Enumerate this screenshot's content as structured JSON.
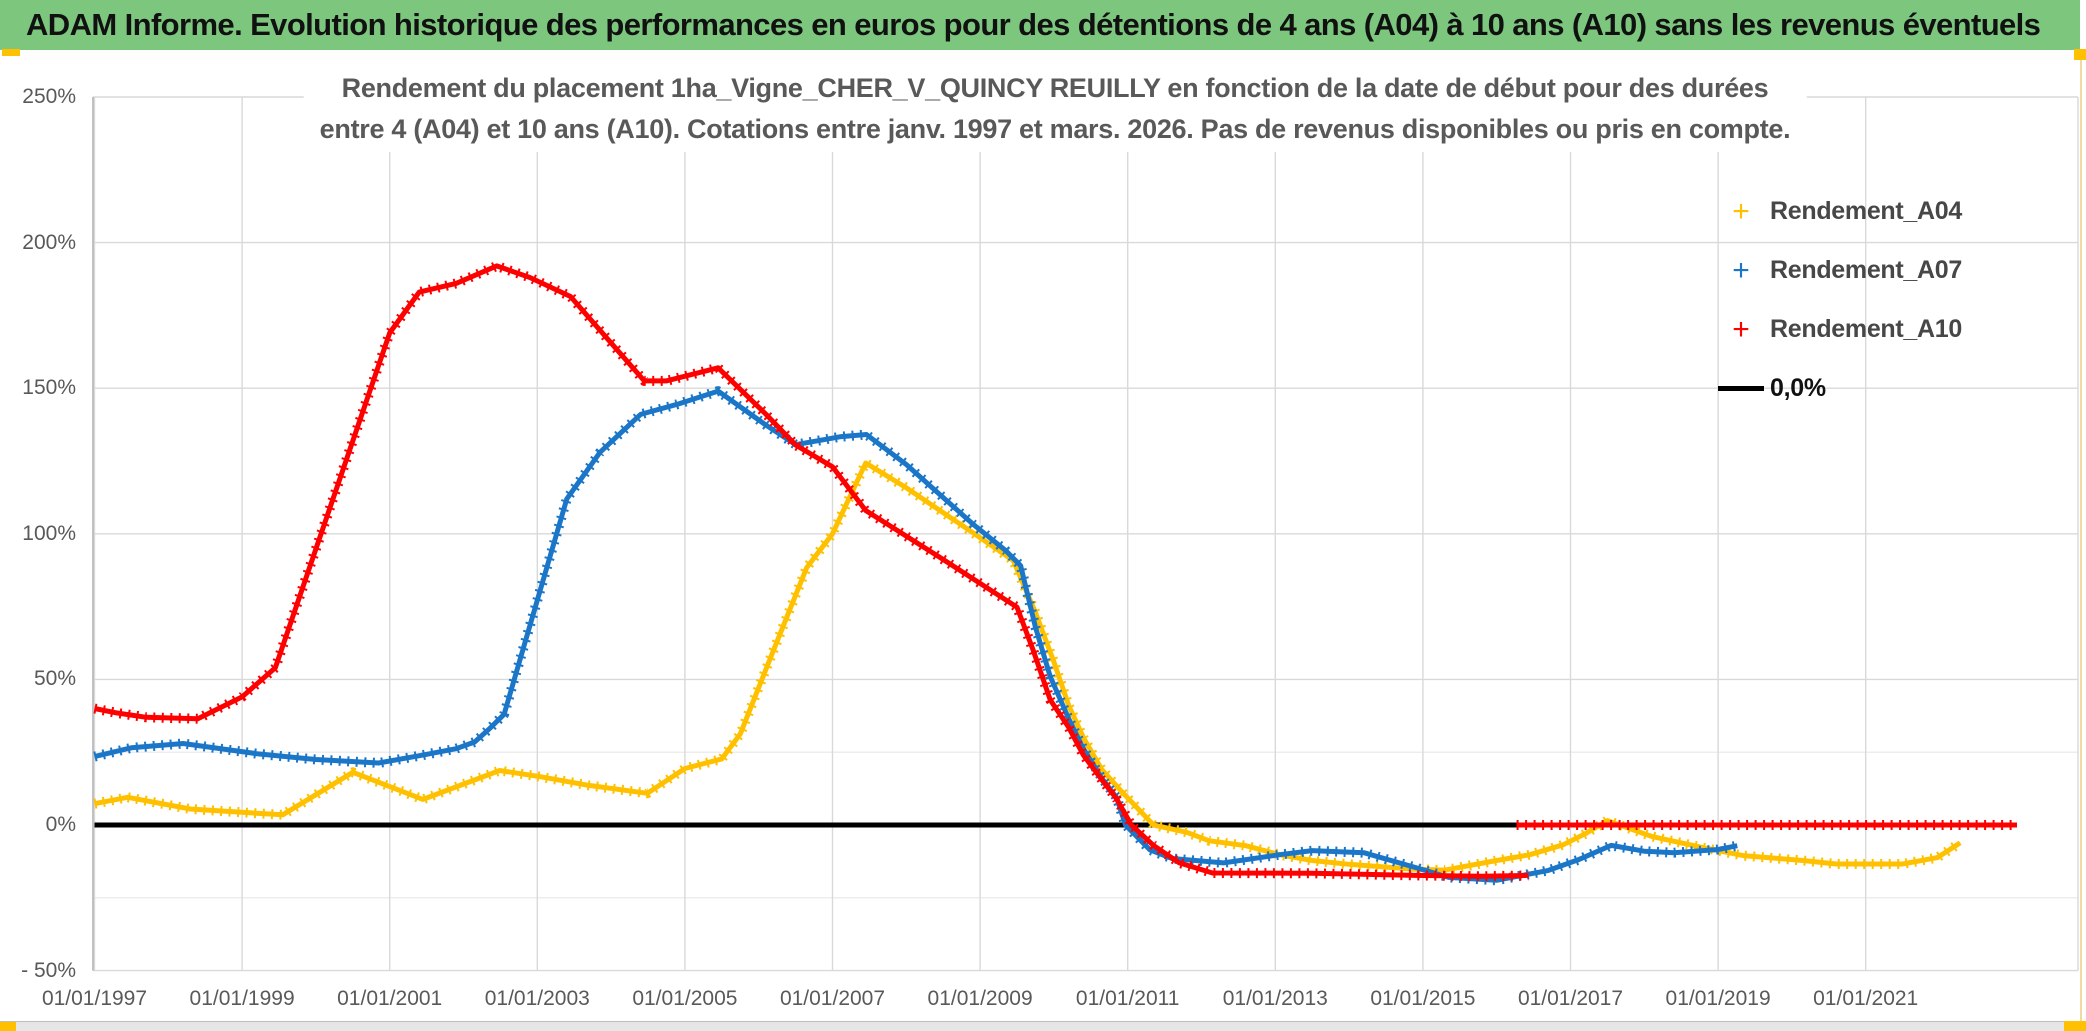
{
  "header": {
    "title": "ADAM Informe. Evolution historique des performances en euros pour des détentions de 4 ans (A04) à 10 ans (A10) sans les revenus éventuels"
  },
  "chart_data": {
    "type": "line",
    "title_line1": "Rendement du placement 1ha_Vigne_CHER_V_QUINCY REUILLY en fonction de la date de début pour des durées",
    "title_line2": "entre 4 (A04) et 10 ans (A10). Cotations entre janv. 1997 et mars. 2026. Pas de revenus disponibles ou pris en compte.",
    "grid_color": "#d9d9d9",
    "minor_grid_color": "#e7e7e7",
    "axis_line_color": "#b3b3b3",
    "x_axis": {
      "ticks": [
        {
          "year": 1997,
          "label": "01/01/1997"
        },
        {
          "year": 1999,
          "label": "01/01/1999"
        },
        {
          "year": 2001,
          "label": "01/01/2001"
        },
        {
          "year": 2003,
          "label": "01/01/2003"
        },
        {
          "year": 2005,
          "label": "01/01/2005"
        },
        {
          "year": 2007,
          "label": "01/01/2007"
        },
        {
          "year": 2009,
          "label": "01/01/2009"
        },
        {
          "year": 2011,
          "label": "01/01/2011"
        },
        {
          "year": 2013,
          "label": "01/01/2013"
        },
        {
          "year": 2015,
          "label": "01/01/2015"
        },
        {
          "year": 2017,
          "label": "01/01/2017"
        },
        {
          "year": 2019,
          "label": "01/01/2019"
        },
        {
          "year": 2021,
          "label": "01/01/2021"
        }
      ],
      "range_years": [
        1997.0,
        2023.9
      ]
    },
    "y_axis": {
      "unit": "percent",
      "range": [
        -50,
        250
      ],
      "major_ticks": [
        {
          "value": 250,
          "label": "250%"
        },
        {
          "value": 200,
          "label": "200%"
        },
        {
          "value": 150,
          "label": "150%"
        },
        {
          "value": 100,
          "label": "100%"
        },
        {
          "value": 50,
          "label": "50%"
        },
        {
          "value": 0,
          "label": "0%"
        },
        {
          "value": -50,
          "label": "- 50%"
        }
      ],
      "minor_gridlines": [
        25,
        -25
      ]
    },
    "zero_line": {
      "value": 0.0,
      "start_year": 1997.0,
      "end_year": 2023.05,
      "color": "#000000"
    },
    "series": [
      {
        "name": "Rendement_A04",
        "color": "#ffc000",
        "marker": "plus",
        "points": [
          [
            1997.0,
            7.3
          ],
          [
            1997.45,
            9.5
          ],
          [
            1998.3,
            5.5
          ],
          [
            1999.1,
            4.2
          ],
          [
            1999.55,
            3.5
          ],
          [
            2000.5,
            18.1
          ],
          [
            2001.45,
            8.8
          ],
          [
            2002.49,
            18.7
          ],
          [
            2003.04,
            16.6
          ],
          [
            2003.7,
            13.6
          ],
          [
            2004.49,
            10.9
          ],
          [
            2005.0,
            19.4
          ],
          [
            2005.5,
            22.7
          ],
          [
            2005.75,
            31.3
          ],
          [
            2006.2,
            60
          ],
          [
            2006.65,
            88.4
          ],
          [
            2007.0,
            100
          ],
          [
            2007.45,
            124.3
          ],
          [
            2008.0,
            115.8
          ],
          [
            2008.9,
            100.4
          ],
          [
            2009.45,
            90.8
          ],
          [
            2009.75,
            73
          ],
          [
            2010.0,
            56
          ],
          [
            2010.2,
            41
          ],
          [
            2010.4,
            30
          ],
          [
            2010.65,
            19
          ],
          [
            2010.9,
            12
          ],
          [
            2011.35,
            0
          ],
          [
            2011.8,
            -2.5
          ],
          [
            2012.1,
            -5.4
          ],
          [
            2012.6,
            -7.1
          ],
          [
            2013.06,
            -10.2
          ],
          [
            2013.5,
            -12.2
          ],
          [
            2014.0,
            -13.5
          ],
          [
            2014.9,
            -15.2
          ],
          [
            2015.3,
            -15.5
          ],
          [
            2016.0,
            -12.2
          ],
          [
            2016.45,
            -10.2
          ],
          [
            2016.9,
            -6.8
          ],
          [
            2017.2,
            -3
          ],
          [
            2017.5,
            1.5
          ],
          [
            2018.1,
            -3.9
          ],
          [
            2018.8,
            -7.8
          ],
          [
            2019.34,
            -10.5
          ],
          [
            2020.15,
            -12.2
          ],
          [
            2020.6,
            -13.4
          ],
          [
            2021.5,
            -13.4
          ],
          [
            2021.97,
            -11.2
          ],
          [
            2022.28,
            -6.1
          ]
        ]
      },
      {
        "name": "Rendement_A07",
        "color": "#1b76c8",
        "marker": "plus",
        "points": [
          [
            1997.0,
            23.5
          ],
          [
            1997.5,
            26.5
          ],
          [
            1998.2,
            28
          ],
          [
            1999.2,
            24.5
          ],
          [
            2000.0,
            22.5
          ],
          [
            2000.85,
            21.3
          ],
          [
            2001.45,
            24
          ],
          [
            2001.9,
            26.2
          ],
          [
            2002.15,
            28.5
          ],
          [
            2002.35,
            33
          ],
          [
            2002.55,
            38
          ],
          [
            2003.4,
            112
          ],
          [
            2003.85,
            128
          ],
          [
            2004.4,
            141
          ],
          [
            2004.9,
            144.5
          ],
          [
            2005.45,
            149
          ],
          [
            2006.1,
            137.3
          ],
          [
            2006.5,
            130.6
          ],
          [
            2007.1,
            133.3
          ],
          [
            2007.46,
            134.1
          ],
          [
            2008.0,
            123.8
          ],
          [
            2008.45,
            113.6
          ],
          [
            2008.9,
            103.4
          ],
          [
            2009.35,
            94.2
          ],
          [
            2009.55,
            89
          ],
          [
            2009.75,
            68
          ],
          [
            2009.95,
            51
          ],
          [
            2010.2,
            36.5
          ],
          [
            2010.4,
            26.2
          ],
          [
            2010.65,
            16
          ],
          [
            2010.85,
            9.4
          ],
          [
            2010.97,
            0
          ],
          [
            2011.3,
            -8.5
          ],
          [
            2011.6,
            -11.5
          ],
          [
            2012.3,
            -13
          ],
          [
            2013.06,
            -10.2
          ],
          [
            2013.5,
            -8.8
          ],
          [
            2014.2,
            -9.5
          ],
          [
            2014.9,
            -14.6
          ],
          [
            2015.35,
            -18
          ],
          [
            2016.0,
            -19
          ],
          [
            2016.7,
            -15.6
          ],
          [
            2017.1,
            -12
          ],
          [
            2017.55,
            -7
          ],
          [
            2018.0,
            -9
          ],
          [
            2018.4,
            -9.5
          ],
          [
            2019.0,
            -8.4
          ],
          [
            2019.26,
            -7.1
          ]
        ]
      },
      {
        "name": "Rendement_A10",
        "color": "#fe0000",
        "marker": "plus",
        "points": [
          [
            1997.0,
            40
          ],
          [
            1997.3,
            38.5
          ],
          [
            1997.7,
            37
          ],
          [
            1998.4,
            36.5
          ],
          [
            1999.0,
            44
          ],
          [
            1999.45,
            54
          ],
          [
            2001.0,
            169
          ],
          [
            2001.4,
            183
          ],
          [
            2001.9,
            186
          ],
          [
            2002.45,
            192
          ],
          [
            2002.9,
            188
          ],
          [
            2003.45,
            181.5
          ],
          [
            2004.45,
            152.5
          ],
          [
            2004.75,
            152.5
          ],
          [
            2005.45,
            157
          ],
          [
            2006.1,
            141
          ],
          [
            2006.5,
            130.5
          ],
          [
            2007.0,
            123
          ],
          [
            2007.45,
            108
          ],
          [
            2008.45,
            92
          ],
          [
            2009.5,
            74.8
          ],
          [
            2009.72,
            60
          ],
          [
            2009.95,
            43
          ],
          [
            2010.2,
            33.5
          ],
          [
            2010.4,
            24
          ],
          [
            2010.65,
            15.5
          ],
          [
            2010.85,
            9
          ],
          [
            2011.05,
            0
          ],
          [
            2011.35,
            -7
          ],
          [
            2011.7,
            -13
          ],
          [
            2012.15,
            -16.5
          ],
          [
            2013.5,
            -16.6
          ],
          [
            2014.9,
            -17.3
          ],
          [
            2015.8,
            -17.6
          ],
          [
            2016.43,
            -17.3
          ]
        ],
        "extra_segments": [
          [
            [
              2016.27,
              0
            ],
            [
              2023.05,
              0
            ]
          ]
        ]
      }
    ],
    "legend": {
      "position": "top-right",
      "items": [
        {
          "label": "Rendement_A04",
          "color": "#ffc000",
          "swatch": "plus"
        },
        {
          "label": "Rendement_A07",
          "color": "#1b76c8",
          "swatch": "plus"
        },
        {
          "label": "Rendement_A10",
          "color": "#fe0000",
          "swatch": "plus"
        },
        {
          "label": "0,0%",
          "color": "#000000",
          "swatch": "line"
        }
      ]
    }
  }
}
